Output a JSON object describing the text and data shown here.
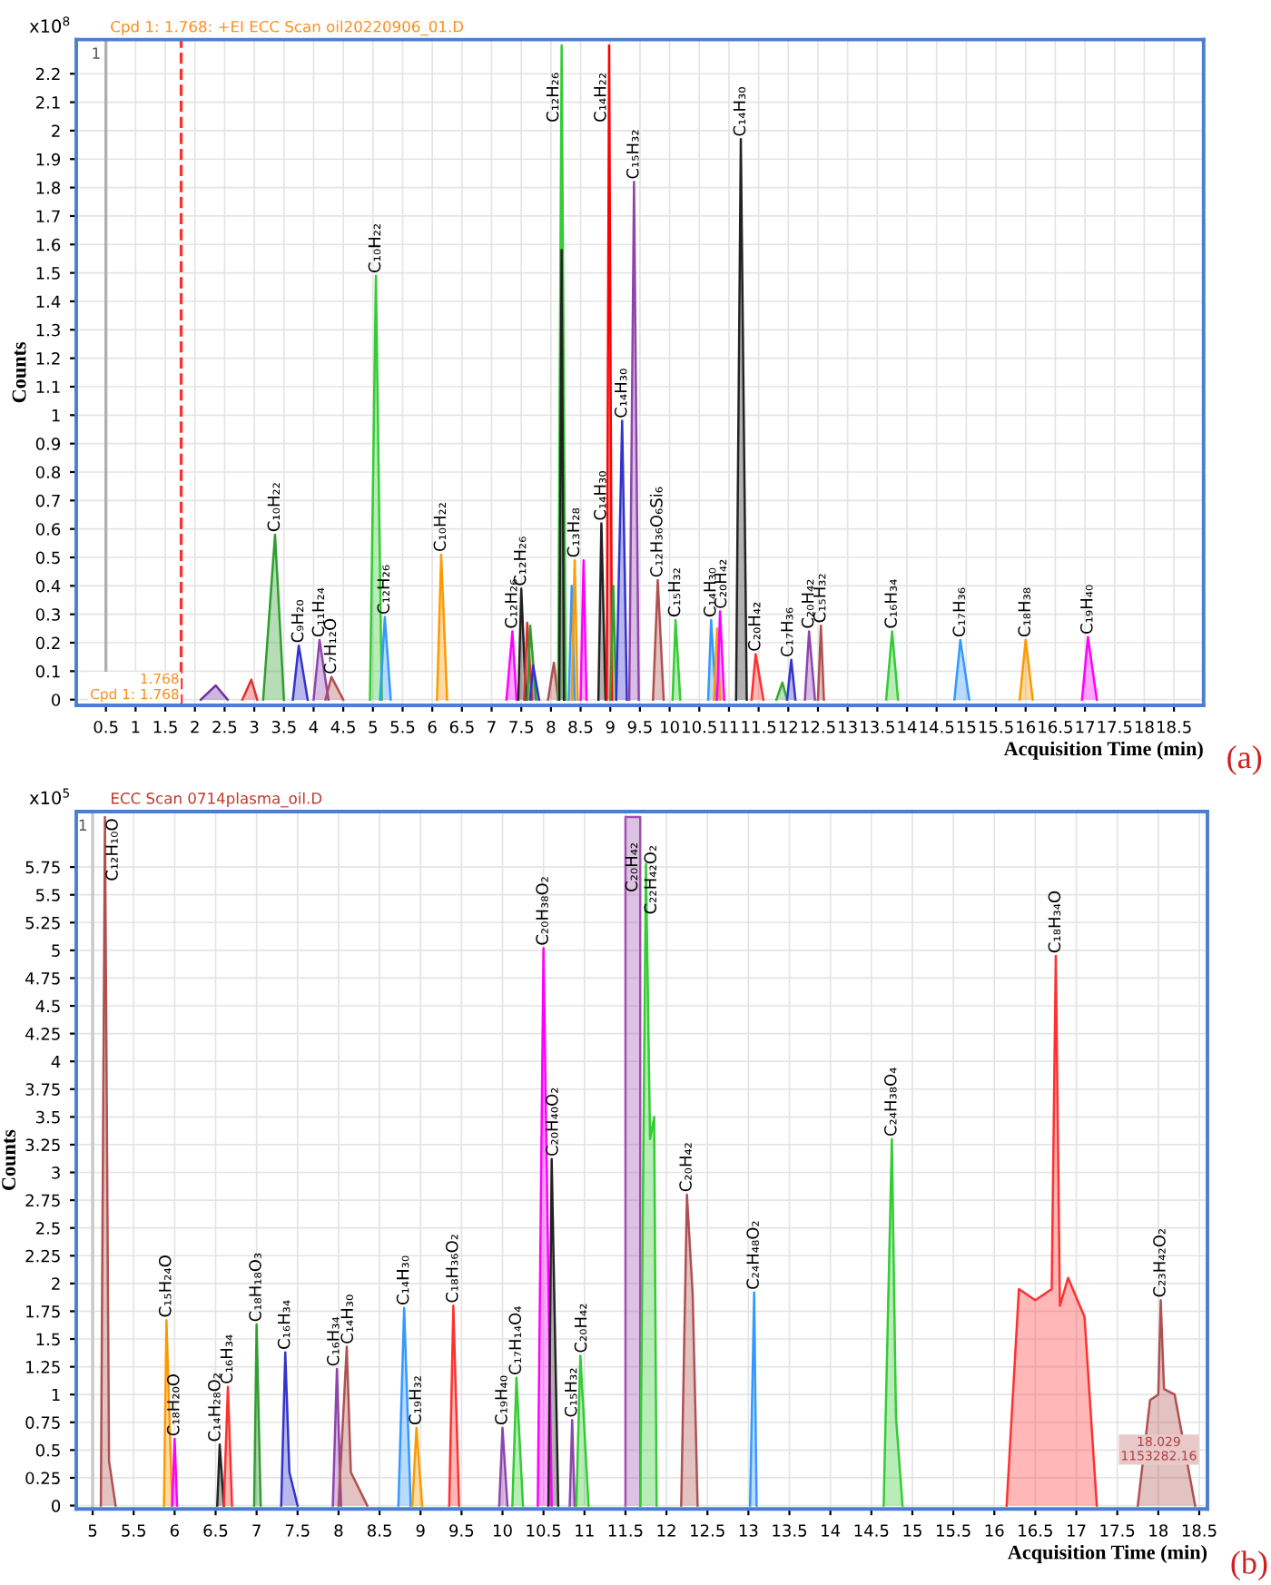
{
  "chart_data": [
    {
      "type": "area",
      "subtitle": "Cpd 1: 1.768: +EI ECC Scan oil20220906_01.D",
      "xlabel": "Acquisition Time (min)",
      "ylabel": "Counts",
      "xlim": [
        0,
        19
      ],
      "ylim": [
        -0.02,
        2.32
      ],
      "xticks": [
        0.5,
        1,
        1.5,
        2,
        2.5,
        3,
        3.5,
        4,
        4.5,
        5,
        5.5,
        6,
        6.5,
        7,
        7.5,
        8,
        8.5,
        9,
        9.5,
        10,
        10.5,
        11,
        11.5,
        12,
        12.5,
        13,
        13.5,
        14,
        14.5,
        15,
        15.5,
        16,
        16.5,
        17,
        17.5,
        18,
        18.5
      ],
      "yticks": [
        0,
        0.1,
        0.2,
        0.3,
        0.4,
        0.5,
        0.6,
        0.7,
        0.8,
        0.9,
        1,
        1.1,
        1.2,
        1.3,
        1.4,
        1.5,
        1.6,
        1.7,
        1.8,
        1.9,
        2,
        2.1,
        2.2
      ],
      "grid": true,
      "legend": false,
      "ref_lines": [
        {
          "axis": "x",
          "value": 0.5,
          "color": "#b0b0b0"
        },
        {
          "axis": "x",
          "value": 1.768,
          "label": "1.768\nCpd 1: 1.768",
          "color": "#ff3030",
          "line_style": "dashed"
        }
      ],
      "series": [
        {
          "color": "#7030a0",
          "x": [
            2.1,
            2.35,
            2.55
          ],
          "values": [
            0,
            0.05,
            0
          ]
        },
        {
          "color": "#e03030",
          "x": [
            2.8,
            2.95,
            3.05
          ],
          "values": [
            0,
            0.07,
            0
          ]
        },
        {
          "color": "#2e9e2e",
          "x": [
            3.15,
            3.35,
            3.5
          ],
          "values": [
            0,
            0.58,
            0
          ]
        },
        {
          "color": "#3333cc",
          "x": [
            3.65,
            3.75,
            3.9
          ],
          "values": [
            0,
            0.19,
            0
          ]
        },
        {
          "color": "#8e44ad",
          "x": [
            4.0,
            4.1,
            4.25
          ],
          "values": [
            0,
            0.21,
            0
          ]
        },
        {
          "color": "#b05050",
          "x": [
            4.2,
            4.3,
            4.5
          ],
          "values": [
            0,
            0.08,
            0
          ]
        },
        {
          "color": "#33cc33",
          "x": [
            4.95,
            5.05,
            5.15
          ],
          "values": [
            0,
            1.49,
            0
          ]
        },
        {
          "color": "#3399ff",
          "x": [
            5.12,
            5.2,
            5.3
          ],
          "values": [
            0,
            0.29,
            0
          ]
        },
        {
          "color": "#ff9900",
          "x": [
            6.08,
            6.15,
            6.25
          ],
          "values": [
            0,
            0.51,
            0
          ]
        },
        {
          "color": "#ff00ff",
          "x": [
            7.25,
            7.35,
            7.42
          ],
          "values": [
            0,
            0.24,
            0
          ]
        },
        {
          "color": "#222222",
          "x": [
            7.45,
            7.5,
            7.58
          ],
          "values": [
            0,
            0.39,
            0
          ]
        },
        {
          "color": "#e03030",
          "x": [
            7.55,
            7.6,
            7.68
          ],
          "values": [
            0,
            0.27,
            0
          ]
        },
        {
          "color": "#2e9e2e",
          "x": [
            7.6,
            7.65,
            7.75
          ],
          "values": [
            0,
            0.26,
            0
          ]
        },
        {
          "color": "#3333cc",
          "x": [
            7.65,
            7.7,
            7.8
          ],
          "values": [
            0,
            0.12,
            0
          ]
        },
        {
          "color": "#b05050",
          "x": [
            7.95,
            8.05,
            8.12
          ],
          "values": [
            0,
            0.13,
            0
          ]
        },
        {
          "color": "#33cc33",
          "x": [
            8.12,
            8.18,
            8.25
          ],
          "values": [
            0,
            2.3,
            0
          ]
        },
        {
          "color": "#222222",
          "x": [
            8.14,
            8.18,
            8.22
          ],
          "values": [
            0,
            1.58,
            0
          ]
        },
        {
          "color": "#3399ff",
          "x": [
            8.3,
            8.35,
            8.4
          ],
          "values": [
            0,
            0.4,
            0
          ]
        },
        {
          "color": "#ff9900",
          "x": [
            8.35,
            8.4,
            8.45
          ],
          "values": [
            0,
            0.49,
            0
          ]
        },
        {
          "color": "#ff00ff",
          "x": [
            8.5,
            8.55,
            8.6
          ],
          "values": [
            0,
            0.49,
            0
          ]
        },
        {
          "color": "#222222",
          "x": [
            8.8,
            8.85,
            8.92
          ],
          "values": [
            0,
            0.62,
            0
          ]
        },
        {
          "color": "#ff0000",
          "x": [
            8.94,
            8.98,
            9.03
          ],
          "values": [
            0,
            2.3,
            0
          ]
        },
        {
          "color": "#2e9e2e",
          "x": [
            9.0,
            9.05,
            9.1
          ],
          "values": [
            0,
            0.4,
            0
          ]
        },
        {
          "color": "#3333cc",
          "x": [
            9.1,
            9.2,
            9.28
          ],
          "values": [
            0,
            0.98,
            0
          ]
        },
        {
          "color": "#8e44ad",
          "x": [
            9.32,
            9.4,
            9.48
          ],
          "values": [
            0,
            1.82,
            0
          ]
        },
        {
          "color": "#b05050",
          "x": [
            9.72,
            9.8,
            9.9
          ],
          "values": [
            0,
            0.42,
            0
          ]
        },
        {
          "color": "#33cc33",
          "x": [
            10.05,
            10.1,
            10.18
          ],
          "values": [
            0,
            0.28,
            0
          ]
        },
        {
          "color": "#3399ff",
          "x": [
            10.65,
            10.7,
            10.78
          ],
          "values": [
            0,
            0.28,
            0
          ]
        },
        {
          "color": "#ff9900",
          "x": [
            10.75,
            10.8,
            10.85
          ],
          "values": [
            0,
            0.25,
            0
          ]
        },
        {
          "color": "#ff00ff",
          "x": [
            10.8,
            10.85,
            10.92
          ],
          "values": [
            0,
            0.31,
            0
          ]
        },
        {
          "color": "#222222",
          "x": [
            11.12,
            11.2,
            11.3
          ],
          "values": [
            0,
            1.97,
            0
          ]
        },
        {
          "color": "#ff3030",
          "x": [
            11.38,
            11.45,
            11.58
          ],
          "values": [
            0,
            0.16,
            0
          ]
        },
        {
          "color": "#33aa33",
          "x": [
            11.8,
            11.9,
            11.98
          ],
          "values": [
            0,
            0.06,
            0
          ]
        },
        {
          "color": "#3333cc",
          "x": [
            11.98,
            12.05,
            12.12
          ],
          "values": [
            0,
            0.14,
            0
          ]
        },
        {
          "color": "#8e44ad",
          "x": [
            12.28,
            12.35,
            12.45
          ],
          "values": [
            0,
            0.24,
            0
          ]
        },
        {
          "color": "#b05050",
          "x": [
            12.5,
            12.55,
            12.6
          ],
          "values": [
            0,
            0.26,
            0
          ]
        },
        {
          "color": "#33cc33",
          "x": [
            13.65,
            13.75,
            13.85
          ],
          "values": [
            0,
            0.24,
            0
          ]
        },
        {
          "color": "#3399ff",
          "x": [
            14.8,
            14.9,
            15.05
          ],
          "values": [
            0,
            0.21,
            0
          ]
        },
        {
          "color": "#ff9900",
          "x": [
            15.9,
            16.0,
            16.12
          ],
          "values": [
            0,
            0.21,
            0
          ]
        },
        {
          "color": "#ff00ff",
          "x": [
            16.95,
            17.05,
            17.2
          ],
          "values": [
            0,
            0.22,
            0
          ]
        }
      ],
      "annotations": [
        "x10$^{8}$",
        "(a)",
        "1",
        {
          "text": "C₁₀H₂₂",
          "x": 3.35,
          "y": 0.58
        },
        {
          "text": "C₉H₂₀",
          "x": 3.75,
          "y": 0.19
        },
        {
          "text": "C₁₁H₂₄",
          "x": 4.1,
          "y": 0.21
        },
        {
          "text": "C₇H₁₂O",
          "x": 4.3,
          "y": 0.08
        },
        {
          "text": "C₁₀H₂₂",
          "x": 5.05,
          "y": 1.49
        },
        {
          "text": "C₁₂H₂₆",
          "x": 5.2,
          "y": 0.29
        },
        {
          "text": "C₁₀H₂₂",
          "x": 6.15,
          "y": 0.51
        },
        {
          "text": "C₁₂H₂₆",
          "x": 7.35,
          "y": 0.24
        },
        {
          "text": "C₁₂H₂₆",
          "x": 7.5,
          "y": 0.39
        },
        {
          "text": "C₁₂H₂₆",
          "x": 8.05,
          "y": 2.02
        },
        {
          "text": "C₁₃H₂₈",
          "x": 8.4,
          "y": 0.49
        },
        {
          "text": "C₁₄H₃₀",
          "x": 8.85,
          "y": 0.62
        },
        {
          "text": "C₁₄H₂₂",
          "x": 8.85,
          "y": 2.02
        },
        {
          "text": "C₁₄H₃₀",
          "x": 9.2,
          "y": 0.98
        },
        {
          "text": "C₁₅H₃₂",
          "x": 9.4,
          "y": 1.82
        },
        {
          "text": "C₁₂H₃₆O₆Si₆",
          "x": 9.8,
          "y": 0.42
        },
        {
          "text": "C₁₅H₃₂",
          "x": 10.1,
          "y": 0.28
        },
        {
          "text": "C₁₄H₃₀",
          "x": 10.7,
          "y": 0.28
        },
        {
          "text": "C₂₀H₄₂",
          "x": 10.88,
          "y": 0.31
        },
        {
          "text": "C₁₄H₃₀",
          "x": 11.2,
          "y": 1.97
        },
        {
          "text": "C₂₀H₄₂",
          "x": 11.45,
          "y": 0.16
        },
        {
          "text": "C₁₇H₃₆",
          "x": 12.0,
          "y": 0.14
        },
        {
          "text": "C₂₀H₄₂",
          "x": 12.35,
          "y": 0.24
        },
        {
          "text": "C₁₅H₃₂",
          "x": 12.55,
          "y": 0.26
        },
        {
          "text": "C₁₆H₃₄",
          "x": 13.75,
          "y": 0.24
        },
        {
          "text": "C₁₇H₃₆",
          "x": 14.9,
          "y": 0.21
        },
        {
          "text": "C₁₈H₃₈",
          "x": 16.0,
          "y": 0.21
        },
        {
          "text": "C₁₉H₄₀",
          "x": 17.05,
          "y": 0.22
        }
      ]
    },
    {
      "type": "area",
      "subtitle": "ECC Scan 0714plasma_oil.D",
      "xlabel": "Acquisition Time (min)",
      "ylabel": "Counts",
      "xlim": [
        4.8,
        18.6
      ],
      "ylim": [
        -0.03,
        6.25
      ],
      "xticks": [
        5,
        5.5,
        6,
        6.5,
        7,
        7.5,
        8,
        8.5,
        9,
        9.5,
        10,
        10.5,
        11,
        11.5,
        12,
        12.5,
        13,
        13.5,
        14,
        14.5,
        15,
        15.5,
        16,
        16.5,
        17,
        17.5,
        18,
        18.5
      ],
      "yticks": [
        0,
        0.25,
        0.5,
        0.75,
        1,
        1.25,
        1.5,
        1.75,
        2,
        2.25,
        2.5,
        2.75,
        3,
        3.25,
        3.5,
        3.75,
        4,
        4.25,
        4.5,
        4.75,
        5,
        5.25,
        5.5,
        5.75
      ],
      "grid": true,
      "legend": false,
      "ref_lines": [
        {
          "axis": "x",
          "value": 5.0,
          "color": "#c8c8c8"
        }
      ],
      "series": [
        {
          "color": "#b05050",
          "x": [
            5.1,
            5.15,
            5.2,
            5.28
          ],
          "values": [
            0,
            6.2,
            0.4,
            0
          ]
        },
        {
          "color": "#ff9900",
          "x": [
            5.87,
            5.9,
            5.97
          ],
          "values": [
            0,
            1.67,
            0
          ]
        },
        {
          "color": "#ff00ff",
          "x": [
            5.97,
            6.0,
            6.03
          ],
          "values": [
            0,
            0.6,
            0
          ]
        },
        {
          "color": "#222222",
          "x": [
            6.52,
            6.55,
            6.6
          ],
          "values": [
            0,
            0.55,
            0
          ]
        },
        {
          "color": "#ff3030",
          "x": [
            6.6,
            6.65,
            6.7
          ],
          "values": [
            0,
            1.07,
            0
          ]
        },
        {
          "color": "#2e9e2e",
          "x": [
            6.97,
            7.0,
            7.05
          ],
          "values": [
            0,
            1.63,
            0
          ]
        },
        {
          "color": "#3333cc",
          "x": [
            7.3,
            7.35,
            7.4,
            7.5
          ],
          "values": [
            0,
            1.38,
            0.3,
            0
          ]
        },
        {
          "color": "#8e44ad",
          "x": [
            7.93,
            7.98,
            8.03
          ],
          "values": [
            0,
            1.23,
            0
          ]
        },
        {
          "color": "#b05050",
          "x": [
            8.0,
            8.1,
            8.15,
            8.35
          ],
          "values": [
            0,
            1.43,
            0.3,
            0
          ]
        },
        {
          "color": "#3399ff",
          "x": [
            8.73,
            8.8,
            8.88
          ],
          "values": [
            0,
            1.78,
            0
          ]
        },
        {
          "color": "#ff9900",
          "x": [
            8.9,
            8.95,
            9.02
          ],
          "values": [
            0,
            0.7,
            0
          ]
        },
        {
          "color": "#ff3030",
          "x": [
            9.35,
            9.4,
            9.47
          ],
          "values": [
            0,
            1.8,
            0
          ]
        },
        {
          "color": "#8e44ad",
          "x": [
            9.96,
            10.0,
            10.06
          ],
          "values": [
            0,
            0.7,
            0
          ]
        },
        {
          "color": "#33cc33",
          "x": [
            10.12,
            10.17,
            10.25
          ],
          "values": [
            0,
            1.15,
            0
          ]
        },
        {
          "color": "#ff00ff",
          "x": [
            10.43,
            10.5,
            10.6
          ],
          "values": [
            0,
            5.02,
            0
          ]
        },
        {
          "color": "#222222",
          "x": [
            10.56,
            10.6,
            10.68
          ],
          "values": [
            0,
            3.12,
            0
          ]
        },
        {
          "color": "#8e44ad",
          "x": [
            10.82,
            10.85,
            10.88
          ],
          "values": [
            0,
            0.77,
            0
          ]
        },
        {
          "color": "#33cc33",
          "x": [
            10.9,
            10.95,
            11.05
          ],
          "values": [
            0,
            1.35,
            0
          ]
        },
        {
          "color": "#a050b0",
          "x": [
            11.5,
            11.5,
            11.68,
            11.68
          ],
          "values": [
            0,
            6.2,
            6.2,
            0
          ]
        },
        {
          "color": "#33cc33",
          "x": [
            11.68,
            11.75,
            11.8,
            11.85,
            11.88
          ],
          "values": [
            0,
            5.78,
            3.3,
            3.5,
            0
          ]
        },
        {
          "color": "#b05050",
          "x": [
            12.18,
            12.25,
            12.32,
            12.38
          ],
          "values": [
            0,
            2.8,
            1.9,
            0
          ]
        },
        {
          "color": "#3399ff",
          "x": [
            13.02,
            13.07,
            13.1
          ],
          "values": [
            0,
            1.92,
            0
          ]
        },
        {
          "color": "#33cc33",
          "x": [
            14.65,
            14.75,
            14.8,
            14.88
          ],
          "values": [
            0,
            3.3,
            0.8,
            0
          ]
        },
        {
          "color": "#ff3030",
          "x": [
            16.15,
            16.3,
            16.5,
            16.7,
            16.75,
            16.8,
            16.9,
            17.1,
            17.25
          ],
          "values": [
            0,
            1.95,
            1.85,
            1.95,
            4.95,
            1.8,
            2.05,
            1.7,
            0
          ]
        },
        {
          "color": "#b05050",
          "x": [
            17.75,
            17.9,
            18.0,
            18.03,
            18.07,
            18.2,
            18.45
          ],
          "values": [
            0,
            0.95,
            1.0,
            1.85,
            1.05,
            1.0,
            0
          ]
        }
      ],
      "annotations": [
        "x10$^{5}$",
        "(b)",
        "1",
        "18.029\n1153282.16",
        {
          "text": "C₁₂H₁₀O",
          "x": 5.25,
          "y": 5.6
        },
        {
          "text": "C₁₅H₂₄O",
          "x": 5.9,
          "y": 1.67
        },
        {
          "text": "C₁₈H₂₀O",
          "x": 6.0,
          "y": 0.6
        },
        {
          "text": "C₁₄H₂₈O₂",
          "x": 6.5,
          "y": 0.55
        },
        {
          "text": "C₁₆H₃₄",
          "x": 6.65,
          "y": 1.07
        },
        {
          "text": "C₁₈H₁₈O₃",
          "x": 7.0,
          "y": 1.63
        },
        {
          "text": "C₁₆H₃₄",
          "x": 7.35,
          "y": 1.38
        },
        {
          "text": "C₁₆H₃₄",
          "x": 7.95,
          "y": 1.23
        },
        {
          "text": "C₁₄H₃₀",
          "x": 8.12,
          "y": 1.43
        },
        {
          "text": "C₁₄H₃₀",
          "x": 8.8,
          "y": 1.78
        },
        {
          "text": "C₁₉H₃₂",
          "x": 8.95,
          "y": 0.7
        },
        {
          "text": "C₁₈H₃₆O₂",
          "x": 9.4,
          "y": 1.8
        },
        {
          "text": "C₁₉H₄₀",
          "x": 10.0,
          "y": 0.7
        },
        {
          "text": "C₁₇H₁₄O₄",
          "x": 10.17,
          "y": 1.15
        },
        {
          "text": "C₂₀H₃₈O₂",
          "x": 10.5,
          "y": 5.02
        },
        {
          "text": "C₂₀H₄₀O₂",
          "x": 10.62,
          "y": 3.12
        },
        {
          "text": "C₁₅H₃₂",
          "x": 10.85,
          "y": 0.77
        },
        {
          "text": "C₂₀H₄₂",
          "x": 10.97,
          "y": 1.35
        },
        {
          "text": "C₂₀H₄₂",
          "x": 11.59,
          "y": 5.5
        },
        {
          "text": "C₂₂H₄₂O₂",
          "x": 11.82,
          "y": 5.3
        },
        {
          "text": "C₂₀H₄₂",
          "x": 12.25,
          "y": 2.8
        },
        {
          "text": "C₂₄H₄₈O₂",
          "x": 13.07,
          "y": 1.92
        },
        {
          "text": "C₂₄H₃₈O₄",
          "x": 14.75,
          "y": 3.3
        },
        {
          "text": "C₁₈H₃₄O",
          "x": 16.75,
          "y": 4.95
        },
        {
          "text": "C₂₃H₄₂O₂",
          "x": 18.03,
          "y": 1.85
        }
      ]
    }
  ]
}
